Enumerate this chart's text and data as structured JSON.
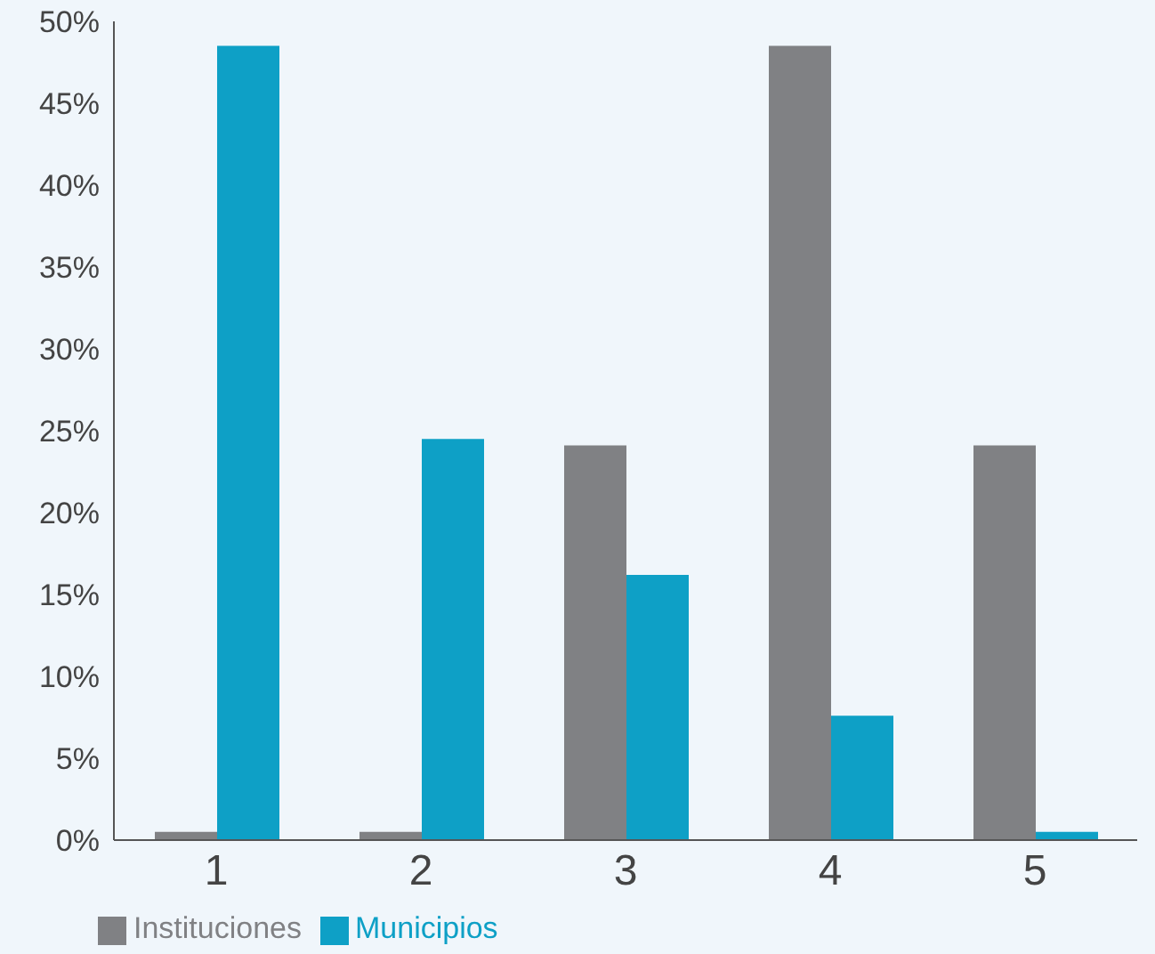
{
  "chart_data": {
    "type": "bar",
    "categories": [
      "1",
      "2",
      "3",
      "4",
      "5"
    ],
    "series": [
      {
        "name": "Instituciones",
        "color": "#808184",
        "values": [
          0.5,
          0.5,
          24.1,
          48.5,
          24.1
        ]
      },
      {
        "name": "Municipios",
        "color": "#0ea0c6",
        "values": [
          48.5,
          24.5,
          16.2,
          7.6,
          0.5
        ]
      }
    ],
    "ylim": [
      0,
      50
    ],
    "yticks": [
      {
        "value": 0,
        "label": "0%"
      },
      {
        "value": 5,
        "label": "5%"
      },
      {
        "value": 10,
        "label": "10%"
      },
      {
        "value": 15,
        "label": "15%"
      },
      {
        "value": 20,
        "label": "20%"
      },
      {
        "value": 25,
        "label": "25%"
      },
      {
        "value": 30,
        "label": "30%"
      },
      {
        "value": 35,
        "label": "35%"
      },
      {
        "value": 40,
        "label": "40%"
      },
      {
        "value": 45,
        "label": "45%"
      },
      {
        "value": 50,
        "label": "50%"
      }
    ],
    "grid": false,
    "legend": "bottom left"
  }
}
